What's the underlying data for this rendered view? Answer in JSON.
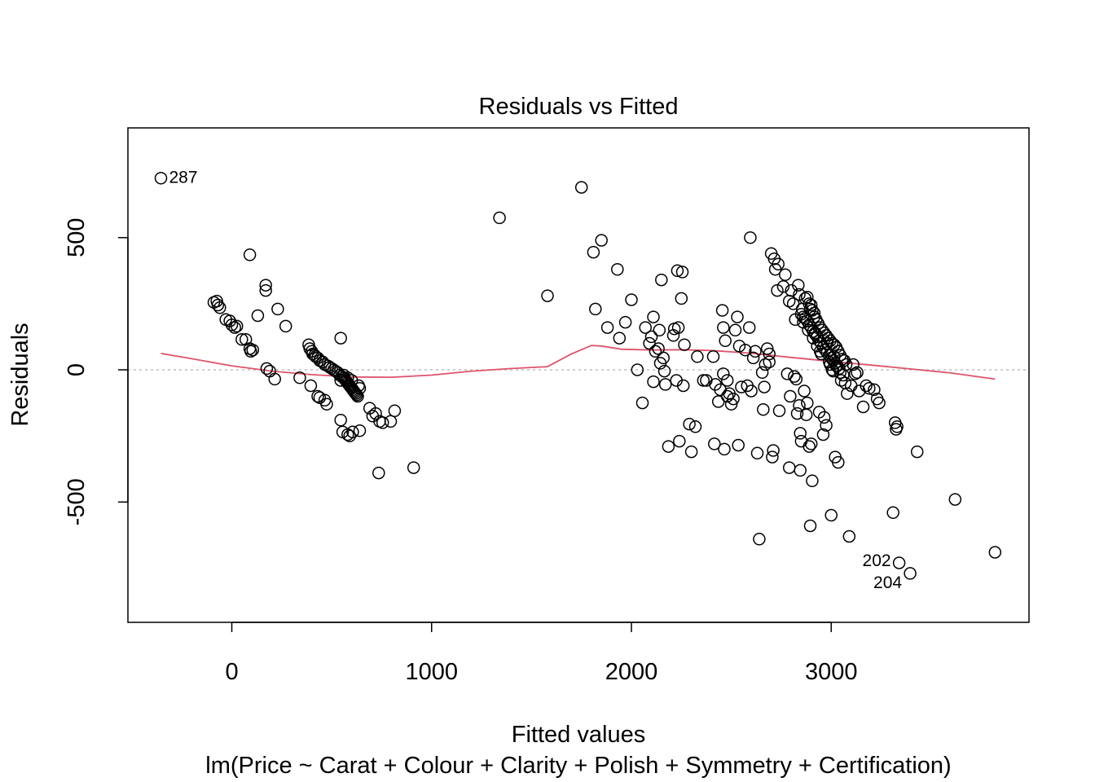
{
  "chart_data": {
    "type": "scatter",
    "title": "Residuals vs Fitted",
    "xlabel": "Fitted values",
    "ylabel": "Residuals",
    "subtitle": "lm(Price ~ Carat + Colour + Clarity + Polish + Symmetry + Certification)",
    "xlim": [
      -520,
      3990
    ],
    "ylim": [
      -955,
      915
    ],
    "x_ticks": [
      0,
      1000,
      2000,
      3000
    ],
    "x_tick_labels": [
      "0",
      "1000",
      "2000",
      "3000"
    ],
    "y_ticks": [
      -500,
      0,
      500
    ],
    "y_tick_labels": [
      "-500",
      "0",
      "500"
    ],
    "grid": false,
    "legend": "none",
    "reference_line": 0,
    "colors": {
      "points": "#000000",
      "smoother": "#DF536B",
      "reference": "#BEBEBE"
    },
    "points": [
      [
        -355,
        725
      ],
      [
        90,
        435
      ],
      [
        170,
        320
      ],
      [
        170,
        300
      ],
      [
        130,
        205
      ],
      [
        230,
        230
      ],
      [
        270,
        165
      ],
      [
        -90,
        255
      ],
      [
        -75,
        260
      ],
      [
        -70,
        245
      ],
      [
        -60,
        235
      ],
      [
        -30,
        190
      ],
      [
        -10,
        185
      ],
      [
        0,
        170
      ],
      [
        15,
        160
      ],
      [
        25,
        165
      ],
      [
        50,
        115
      ],
      [
        70,
        115
      ],
      [
        90,
        80
      ],
      [
        95,
        70
      ],
      [
        105,
        75
      ],
      [
        175,
        5
      ],
      [
        190,
        -5
      ],
      [
        215,
        -35
      ],
      [
        340,
        -30
      ],
      [
        385,
        95
      ],
      [
        390,
        80
      ],
      [
        400,
        70
      ],
      [
        405,
        60
      ],
      [
        415,
        55
      ],
      [
        420,
        50
      ],
      [
        430,
        45
      ],
      [
        440,
        35
      ],
      [
        455,
        30
      ],
      [
        465,
        20
      ],
      [
        480,
        15
      ],
      [
        490,
        10
      ],
      [
        500,
        5
      ],
      [
        510,
        0
      ],
      [
        520,
        -5
      ],
      [
        530,
        -10
      ],
      [
        540,
        -20
      ],
      [
        550,
        -25
      ],
      [
        560,
        -30
      ],
      [
        565,
        -35
      ],
      [
        570,
        -40
      ],
      [
        575,
        -45
      ],
      [
        580,
        -50
      ],
      [
        585,
        -55
      ],
      [
        590,
        -60
      ],
      [
        595,
        -65
      ],
      [
        600,
        -70
      ],
      [
        605,
        -75
      ],
      [
        610,
        -80
      ],
      [
        615,
        -85
      ],
      [
        620,
        -90
      ],
      [
        625,
        -95
      ],
      [
        630,
        -100
      ],
      [
        635,
        -60
      ],
      [
        640,
        -70
      ],
      [
        600,
        -40
      ],
      [
        580,
        -30
      ],
      [
        560,
        -20
      ],
      [
        545,
        120
      ],
      [
        545,
        -40
      ],
      [
        395,
        -60
      ],
      [
        430,
        -100
      ],
      [
        440,
        -105
      ],
      [
        465,
        -115
      ],
      [
        475,
        -130
      ],
      [
        545,
        -190
      ],
      [
        555,
        -235
      ],
      [
        580,
        -245
      ],
      [
        590,
        -250
      ],
      [
        605,
        -235
      ],
      [
        640,
        -230
      ],
      [
        690,
        -145
      ],
      [
        705,
        -175
      ],
      [
        720,
        -165
      ],
      [
        740,
        -195
      ],
      [
        755,
        -200
      ],
      [
        795,
        -195
      ],
      [
        815,
        -155
      ],
      [
        735,
        -390
      ],
      [
        910,
        -370
      ],
      [
        1340,
        575
      ],
      [
        1580,
        280
      ],
      [
        1750,
        690
      ],
      [
        1810,
        445
      ],
      [
        1820,
        230
      ],
      [
        1850,
        490
      ],
      [
        1880,
        160
      ],
      [
        1930,
        380
      ],
      [
        1940,
        120
      ],
      [
        1970,
        180
      ],
      [
        2000,
        265
      ],
      [
        2030,
        0
      ],
      [
        2055,
        -125
      ],
      [
        2070,
        160
      ],
      [
        2090,
        100
      ],
      [
        2100,
        125
      ],
      [
        2110,
        -45
      ],
      [
        2110,
        200
      ],
      [
        2120,
        70
      ],
      [
        2135,
        80
      ],
      [
        2140,
        150
      ],
      [
        2145,
        25
      ],
      [
        2150,
        340
      ],
      [
        2160,
        45
      ],
      [
        2165,
        -5
      ],
      [
        2170,
        -55
      ],
      [
        2185,
        -290
      ],
      [
        2210,
        130
      ],
      [
        2215,
        155
      ],
      [
        2225,
        -40
      ],
      [
        2230,
        375
      ],
      [
        2235,
        160
      ],
      [
        2240,
        -270
      ],
      [
        2250,
        270
      ],
      [
        2255,
        370
      ],
      [
        2260,
        -60
      ],
      [
        2265,
        95
      ],
      [
        2290,
        -205
      ],
      [
        2300,
        -310
      ],
      [
        2320,
        -215
      ],
      [
        2330,
        50
      ],
      [
        2360,
        -40
      ],
      [
        2375,
        -40
      ],
      [
        2410,
        50
      ],
      [
        2415,
        -280
      ],
      [
        2420,
        -55
      ],
      [
        2435,
        -120
      ],
      [
        2445,
        -75
      ],
      [
        2455,
        225
      ],
      [
        2460,
        -15
      ],
      [
        2460,
        160
      ],
      [
        2465,
        -300
      ],
      [
        2470,
        110
      ],
      [
        2480,
        -40
      ],
      [
        2480,
        -100
      ],
      [
        2490,
        -90
      ],
      [
        2500,
        -130
      ],
      [
        2510,
        -110
      ],
      [
        2520,
        150
      ],
      [
        2530,
        200
      ],
      [
        2535,
        -285
      ],
      [
        2540,
        90
      ],
      [
        2550,
        -65
      ],
      [
        2570,
        75
      ],
      [
        2580,
        -60
      ],
      [
        2590,
        160
      ],
      [
        2595,
        500
      ],
      [
        2600,
        -80
      ],
      [
        2610,
        45
      ],
      [
        2620,
        70
      ],
      [
        2630,
        -315
      ],
      [
        2640,
        -640
      ],
      [
        2655,
        -10
      ],
      [
        2660,
        -150
      ],
      [
        2665,
        -65
      ],
      [
        2670,
        20
      ],
      [
        2680,
        80
      ],
      [
        2690,
        30
      ],
      [
        2690,
        60
      ],
      [
        2700,
        440
      ],
      [
        2705,
        -330
      ],
      [
        2710,
        -305
      ],
      [
        2715,
        420
      ],
      [
        2720,
        380
      ],
      [
        2730,
        300
      ],
      [
        2735,
        400
      ],
      [
        2740,
        -155
      ],
      [
        2760,
        315
      ],
      [
        2770,
        360
      ],
      [
        2780,
        -15
      ],
      [
        2790,
        -370
      ],
      [
        2790,
        260
      ],
      [
        2795,
        -100
      ],
      [
        2800,
        300
      ],
      [
        2810,
        250
      ],
      [
        2815,
        -25
      ],
      [
        2820,
        190
      ],
      [
        2825,
        -35
      ],
      [
        2830,
        -165
      ],
      [
        2835,
        320
      ],
      [
        2840,
        285
      ],
      [
        2840,
        -135
      ],
      [
        2845,
        -240
      ],
      [
        2845,
        -380
      ],
      [
        2850,
        -270
      ],
      [
        2855,
        230
      ],
      [
        2860,
        180
      ],
      [
        2865,
        -80
      ],
      [
        2870,
        270
      ],
      [
        2875,
        -170
      ],
      [
        2880,
        -125
      ],
      [
        2885,
        150
      ],
      [
        2890,
        -290
      ],
      [
        2895,
        -590
      ],
      [
        2900,
        -280
      ],
      [
        2905,
        -420
      ],
      [
        2910,
        120
      ],
      [
        2915,
        200
      ],
      [
        2920,
        140
      ],
      [
        2930,
        90
      ],
      [
        2940,
        -160
      ],
      [
        2945,
        70
      ],
      [
        2950,
        60
      ],
      [
        2960,
        -245
      ],
      [
        2965,
        -180
      ],
      [
        2975,
        -210
      ],
      [
        2980,
        100
      ],
      [
        2990,
        30
      ],
      [
        2995,
        20
      ],
      [
        3000,
        -550
      ],
      [
        3005,
        0
      ],
      [
        3010,
        -5
      ],
      [
        3015,
        50
      ],
      [
        3020,
        -330
      ],
      [
        3025,
        15
      ],
      [
        3035,
        -350
      ],
      [
        3045,
        -10
      ],
      [
        3050,
        -40
      ],
      [
        3060,
        -20
      ],
      [
        3070,
        -50
      ],
      [
        3080,
        -90
      ],
      [
        3090,
        -630
      ],
      [
        3100,
        -60
      ],
      [
        3110,
        20
      ],
      [
        3120,
        -15
      ],
      [
        3130,
        -10
      ],
      [
        3140,
        -80
      ],
      [
        3160,
        -140
      ],
      [
        3175,
        -60
      ],
      [
        3190,
        -70
      ],
      [
        3215,
        -75
      ],
      [
        3230,
        -110
      ],
      [
        3240,
        -125
      ],
      [
        3310,
        -540
      ],
      [
        3320,
        -200
      ],
      [
        3325,
        -225
      ],
      [
        3330,
        -215
      ],
      [
        3340,
        -730
      ],
      [
        3395,
        -770
      ],
      [
        3430,
        -310
      ],
      [
        3620,
        -490
      ],
      [
        3820,
        -690
      ],
      [
        2880,
        275
      ],
      [
        2890,
        250
      ],
      [
        2900,
        245
      ],
      [
        2895,
        230
      ],
      [
        2905,
        225
      ],
      [
        2915,
        215
      ],
      [
        2925,
        190
      ],
      [
        2935,
        175
      ],
      [
        2945,
        160
      ],
      [
        2955,
        150
      ],
      [
        2965,
        140
      ],
      [
        2975,
        130
      ],
      [
        2985,
        120
      ],
      [
        2995,
        110
      ],
      [
        3005,
        100
      ],
      [
        3015,
        95
      ],
      [
        3025,
        85
      ],
      [
        3035,
        70
      ],
      [
        3045,
        55
      ],
      [
        3055,
        40
      ],
      [
        3065,
        35
      ],
      [
        3075,
        20
      ],
      [
        2850,
        210
      ],
      [
        2860,
        200
      ],
      [
        2870,
        195
      ],
      [
        2880,
        185
      ],
      [
        2890,
        170
      ],
      [
        2900,
        160
      ],
      [
        2910,
        145
      ],
      [
        2920,
        135
      ],
      [
        2930,
        125
      ],
      [
        2940,
        110
      ],
      [
        2950,
        100
      ],
      [
        2960,
        85
      ],
      [
        2970,
        75
      ],
      [
        2980,
        65
      ],
      [
        2990,
        55
      ],
      [
        3000,
        45
      ],
      [
        3010,
        35
      ],
      [
        3020,
        25
      ],
      [
        3030,
        15
      ],
      [
        3040,
        5
      ]
    ],
    "point_labels": [
      {
        "text": "287",
        "x": -355,
        "y": 725
      },
      {
        "text": "202",
        "x": 3340,
        "y": -730
      },
      {
        "text": "204",
        "x": 3395,
        "y": -770
      }
    ],
    "smoother": [
      [
        -355,
        62
      ],
      [
        -200,
        42
      ],
      [
        0,
        15
      ],
      [
        200,
        -5
      ],
      [
        400,
        -18
      ],
      [
        600,
        -27
      ],
      [
        800,
        -28
      ],
      [
        1000,
        -20
      ],
      [
        1200,
        -5
      ],
      [
        1400,
        5
      ],
      [
        1580,
        12
      ],
      [
        1700,
        60
      ],
      [
        1800,
        92
      ],
      [
        1850,
        90
      ],
      [
        1950,
        78
      ],
      [
        2100,
        75
      ],
      [
        2250,
        76
      ],
      [
        2400,
        73
      ],
      [
        2600,
        63
      ],
      [
        2800,
        47
      ],
      [
        3000,
        32
      ],
      [
        3200,
        18
      ],
      [
        3400,
        3
      ],
      [
        3600,
        -12
      ],
      [
        3820,
        -35
      ]
    ]
  }
}
